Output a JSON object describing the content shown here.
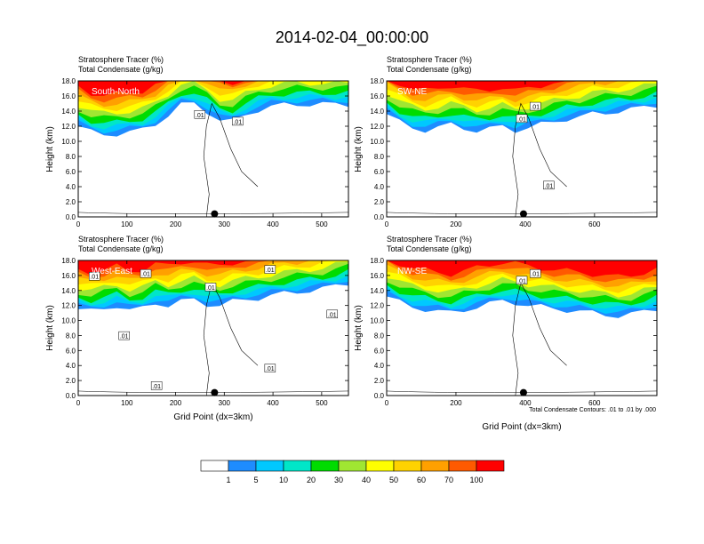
{
  "title": "2014-02-04_00:00:00",
  "colorbar": {
    "labels": [
      "1",
      "5",
      "10",
      "20",
      "30",
      "40",
      "50",
      "60",
      "70",
      "100"
    ],
    "colors": [
      "#ffffff",
      "#1e8cff",
      "#00c8ff",
      "#00e6c8",
      "#00dc00",
      "#a0e632",
      "#ffff00",
      "#ffd200",
      "#ffa000",
      "#ff5a00",
      "#ff0000"
    ]
  },
  "chart_data": [
    {
      "type": "contour",
      "panel": "South-North",
      "label_line1": "Stratosphere Tracer   (%)",
      "label_line2": "Total Condensate   (g/kg)",
      "ylabel": "Height (km)",
      "xlabel": "",
      "xlim": [
        0,
        555
      ],
      "ylim": [
        0,
        18
      ],
      "xticks": [
        "0",
        "100",
        "200",
        "300",
        "400",
        "500"
      ],
      "yticks": [
        "0.0",
        "2.0",
        "4.0",
        "6.0",
        "8.0",
        "10.0",
        "12.0",
        "14.0",
        "16.0",
        "18.0"
      ],
      "tracer_bottom_km": [
        12.0,
        11.2,
        10.9,
        11.0,
        11.2,
        11.5,
        12.3,
        13.5,
        14.8,
        15.0,
        14.0,
        12.8,
        12.6,
        13.5,
        14.2,
        14.6,
        14.8,
        14.9,
        14.9,
        14.9,
        14.9,
        14.9
      ],
      "contour_labels": [
        ".01",
        ".01"
      ],
      "marker_x": 280
    },
    {
      "type": "contour",
      "panel": "SW-NE",
      "label_line1": "Stratosphere Tracer   (%)",
      "label_line2": "Total Condensate   (g/kg)",
      "ylabel": "Height (km)",
      "xlabel": "",
      "xlim": [
        0,
        780
      ],
      "ylim": [
        0,
        18
      ],
      "xticks": [
        "0",
        "200",
        "400",
        "600"
      ],
      "yticks": [
        "0.0",
        "2.0",
        "4.0",
        "6.0",
        "8.0",
        "10.0",
        "12.0",
        "14.0",
        "16.0",
        "18.0"
      ],
      "tracer_bottom_km": [
        13.6,
        12.5,
        11.8,
        11.5,
        11.8,
        12.2,
        11.8,
        11.4,
        11.6,
        12.0,
        11.5,
        11.8,
        12.2,
        12.6,
        13.0,
        13.2,
        13.6,
        13.8,
        14.0,
        14.2,
        14.5,
        14.8
      ],
      "contour_labels": [
        ".01",
        ".01",
        ".01"
      ],
      "marker_x": 395
    },
    {
      "type": "contour",
      "panel": "West-East",
      "label_line1": "Stratosphere Tracer   (%)",
      "label_line2": "Total Condensate   (g/kg)",
      "ylabel": "Height (km)",
      "xlabel": "Grid Point (dx=3km)",
      "xlim": [
        0,
        555
      ],
      "ylim": [
        0,
        18
      ],
      "xticks": [
        "0",
        "100",
        "200",
        "300",
        "400",
        "500"
      ],
      "yticks": [
        "0.0",
        "2.0",
        "4.0",
        "6.0",
        "8.0",
        "10.0",
        "12.0",
        "14.0",
        "16.0",
        "18.0"
      ],
      "tracer_bottom_km": [
        11.5,
        11.2,
        11.6,
        12.0,
        11.3,
        11.6,
        12.4,
        12.0,
        12.5,
        12.8,
        12.2,
        12.0,
        12.5,
        12.8,
        13.0,
        13.3,
        13.6,
        13.8,
        14.0,
        14.2,
        14.6,
        15.0
      ],
      "contour_labels": [
        ".01",
        ".01",
        ".01",
        ".01",
        ".01",
        ".01",
        ".01",
        ".01"
      ],
      "marker_x": 280
    },
    {
      "type": "contour",
      "panel": "NW-SE",
      "label_line1": "Stratosphere Tracer   (%)",
      "label_line2": "Total Condensate   (g/kg)",
      "ylabel": "Height (km)",
      "xlabel": "Grid Point (dx=3km)",
      "note": "Total Condensate Contours: .01 to .01 by .000",
      "xlim": [
        0,
        780
      ],
      "ylim": [
        0,
        18
      ],
      "xticks": [
        "0",
        "200",
        "400",
        "600"
      ],
      "yticks": [
        "0.0",
        "2.0",
        "4.0",
        "6.0",
        "8.0",
        "10.0",
        "12.0",
        "14.0",
        "16.0",
        "18.0"
      ],
      "tracer_bottom_km": [
        13.2,
        12.4,
        11.8,
        11.5,
        11.2,
        11.0,
        11.4,
        11.8,
        12.2,
        12.6,
        12.4,
        12.0,
        11.8,
        11.6,
        11.4,
        11.2,
        11.0,
        10.8,
        10.6,
        10.8,
        11.2,
        11.6
      ],
      "contour_labels": [
        ".01",
        ".01"
      ],
      "marker_x": 395
    }
  ]
}
